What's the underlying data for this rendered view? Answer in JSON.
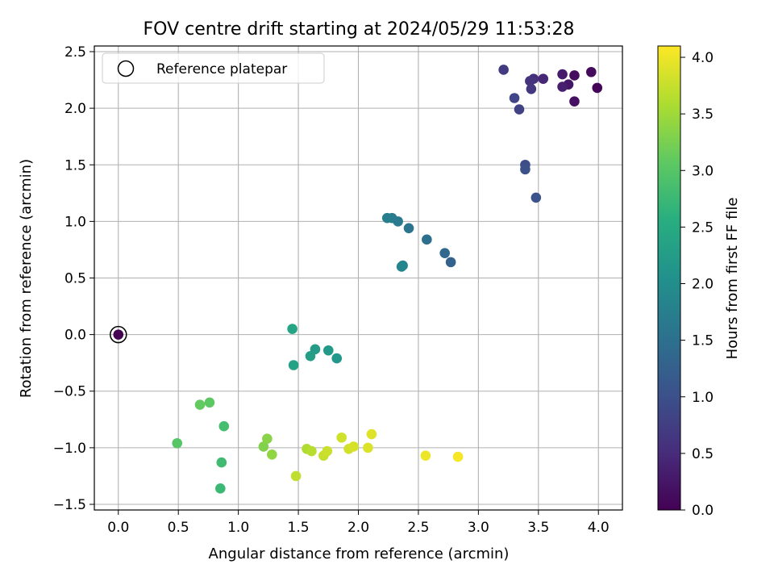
{
  "chart_data": {
    "type": "scatter",
    "title": "FOV centre drift starting at 2024/05/29 11:53:28",
    "xlabel": "Angular distance from reference (arcmin)",
    "ylabel": "Rotation from reference (arcmin)",
    "xlim": [
      -0.2,
      4.2
    ],
    "ylim": [
      -1.55,
      2.55
    ],
    "xticks": [
      "0.0",
      "0.5",
      "1.0",
      "1.5",
      "2.0",
      "2.5",
      "3.0",
      "3.5",
      "4.0"
    ],
    "yticks": [
      "-1.5",
      "-1.0",
      "-0.5",
      "0.0",
      "0.5",
      "1.0",
      "1.5",
      "2.0",
      "2.5"
    ],
    "grid": true,
    "legend": {
      "placement": "top-left",
      "entries": [
        "Reference platepar"
      ]
    },
    "colorbar": {
      "label": "Hours from first FF file",
      "colormap": "viridis",
      "range": [
        0.0,
        4.1
      ],
      "ticks": [
        "0.0",
        "0.5",
        "1.0",
        "1.5",
        "2.0",
        "2.5",
        "3.0",
        "3.5",
        "4.0"
      ]
    },
    "reference_point": {
      "x": 0.0,
      "y": 0.0
    },
    "points": [
      {
        "x": 0.0,
        "y": 0.0,
        "c": 0.0
      },
      {
        "x": 3.99,
        "y": 2.18,
        "c": 0.05
      },
      {
        "x": 3.94,
        "y": 2.32,
        "c": 0.1
      },
      {
        "x": 3.8,
        "y": 2.29,
        "c": 0.15
      },
      {
        "x": 3.8,
        "y": 2.06,
        "c": 0.18
      },
      {
        "x": 3.75,
        "y": 2.21,
        "c": 0.25
      },
      {
        "x": 3.7,
        "y": 2.3,
        "c": 0.3
      },
      {
        "x": 3.7,
        "y": 2.19,
        "c": 0.35
      },
      {
        "x": 3.54,
        "y": 2.26,
        "c": 0.45
      },
      {
        "x": 3.46,
        "y": 2.26,
        "c": 0.55
      },
      {
        "x": 3.43,
        "y": 2.24,
        "c": 0.6
      },
      {
        "x": 3.44,
        "y": 2.17,
        "c": 0.65
      },
      {
        "x": 3.21,
        "y": 2.34,
        "c": 0.7
      },
      {
        "x": 3.34,
        "y": 1.99,
        "c": 0.8
      },
      {
        "x": 3.3,
        "y": 2.09,
        "c": 0.85
      },
      {
        "x": 3.39,
        "y": 1.5,
        "c": 0.95
      },
      {
        "x": 3.39,
        "y": 1.46,
        "c": 1.0
      },
      {
        "x": 3.48,
        "y": 1.21,
        "c": 1.05
      },
      {
        "x": 2.77,
        "y": 0.64,
        "c": 1.3
      },
      {
        "x": 2.72,
        "y": 0.72,
        "c": 1.4
      },
      {
        "x": 2.57,
        "y": 0.84,
        "c": 1.5
      },
      {
        "x": 2.42,
        "y": 0.94,
        "c": 1.6
      },
      {
        "x": 2.33,
        "y": 1.0,
        "c": 1.65
      },
      {
        "x": 2.28,
        "y": 1.03,
        "c": 1.7
      },
      {
        "x": 2.24,
        "y": 1.03,
        "c": 1.75
      },
      {
        "x": 2.37,
        "y": 0.61,
        "c": 1.8
      },
      {
        "x": 2.36,
        "y": 0.6,
        "c": 1.85
      },
      {
        "x": 1.82,
        "y": -0.21,
        "c": 2.15
      },
      {
        "x": 1.75,
        "y": -0.14,
        "c": 2.2
      },
      {
        "x": 1.64,
        "y": -0.13,
        "c": 2.25
      },
      {
        "x": 1.6,
        "y": -0.19,
        "c": 2.3
      },
      {
        "x": 1.46,
        "y": -0.27,
        "c": 2.35
      },
      {
        "x": 1.45,
        "y": 0.05,
        "c": 2.4
      },
      {
        "x": 0.85,
        "y": -1.36,
        "c": 2.75
      },
      {
        "x": 0.86,
        "y": -1.13,
        "c": 2.8
      },
      {
        "x": 0.88,
        "y": -0.81,
        "c": 2.85
      },
      {
        "x": 0.49,
        "y": -0.96,
        "c": 3.0
      },
      {
        "x": 0.76,
        "y": -0.6,
        "c": 3.05
      },
      {
        "x": 0.68,
        "y": -0.62,
        "c": 3.1
      },
      {
        "x": 1.21,
        "y": -0.99,
        "c": 3.3
      },
      {
        "x": 1.24,
        "y": -0.92,
        "c": 3.35
      },
      {
        "x": 1.28,
        "y": -1.06,
        "c": 3.4
      },
      {
        "x": 1.57,
        "y": -1.01,
        "c": 3.6
      },
      {
        "x": 1.61,
        "y": -1.03,
        "c": 3.65
      },
      {
        "x": 1.48,
        "y": -1.25,
        "c": 3.7
      },
      {
        "x": 1.71,
        "y": -1.07,
        "c": 3.75
      },
      {
        "x": 1.74,
        "y": -1.03,
        "c": 3.78
      },
      {
        "x": 1.86,
        "y": -0.91,
        "c": 3.8
      },
      {
        "x": 1.92,
        "y": -1.01,
        "c": 3.82
      },
      {
        "x": 1.96,
        "y": -0.99,
        "c": 3.85
      },
      {
        "x": 2.08,
        "y": -1.0,
        "c": 3.88
      },
      {
        "x": 2.11,
        "y": -0.88,
        "c": 3.9
      },
      {
        "x": 2.56,
        "y": -1.07,
        "c": 4.0
      },
      {
        "x": 2.83,
        "y": -1.08,
        "c": 4.05
      }
    ]
  }
}
